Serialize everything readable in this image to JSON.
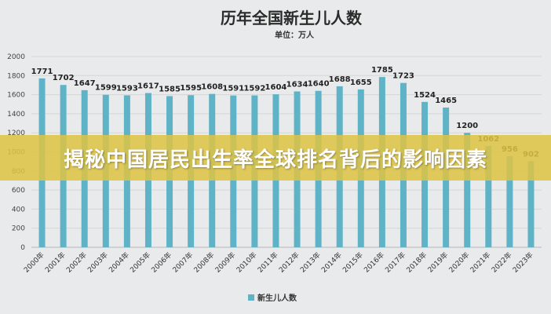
{
  "banner": {
    "text": "揭秘中国居民出生率全球排名背后的影响因素"
  },
  "chart_data": {
    "type": "bar",
    "title": "历年全国新生儿人数",
    "subtitle": "单位：万人",
    "categories": [
      "2000年",
      "2001年",
      "2002年",
      "2003年",
      "2004年",
      "2005年",
      "2006年",
      "2007年",
      "2008年",
      "2009年",
      "2010年",
      "2011年",
      "2012年",
      "2013年",
      "2014年",
      "2015年",
      "2016年",
      "2017年",
      "2018年",
      "2019年",
      "2020年",
      "2021年",
      "2022年",
      "2023年"
    ],
    "series": [
      {
        "name": "新生儿人数",
        "values": [
          1771,
          1702,
          1647,
          1599,
          1593,
          1617,
          1585,
          1595,
          1608,
          1591,
          1592,
          1604,
          1634,
          1640,
          1688,
          1655,
          1785,
          1723,
          1524,
          1465,
          1200,
          1062,
          956,
          902
        ]
      }
    ],
    "yticks": [
      "0",
      "200",
      "400",
      "600",
      "800",
      "1000",
      "1200",
      "1400",
      "1600",
      "1800",
      "2000"
    ],
    "ylim": [
      0,
      2000
    ],
    "grid": true,
    "legend": "bottom",
    "colors": {
      "bar": "#5fb3c6",
      "background": "#e9eaeb",
      "banner": "#dec444"
    }
  }
}
